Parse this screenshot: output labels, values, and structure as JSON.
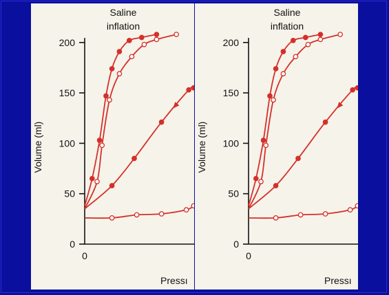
{
  "panels": [
    {
      "title_line1": "Saline",
      "title_line2": "inflation",
      "ylabel": "Volume (ml)",
      "xlabel_visible": "Pressı"
    },
    {
      "title_line1": "Saline",
      "title_line2": "inflation",
      "ylabel": "Volume (ml)",
      "xlabel_visible": "Pressı"
    }
  ],
  "chart_data": [
    {
      "type": "line",
      "title": "Saline inflation",
      "ylabel": "Volume (ml)",
      "xlabel": "Pressı",
      "ylim": [
        0,
        210
      ],
      "yticks": [
        0,
        50,
        100,
        150,
        200
      ],
      "xticks": [
        0
      ],
      "xlim": [
        0,
        22
      ],
      "colors": {
        "curve": "#d4302a",
        "axis": "#111111"
      },
      "series": [
        {
          "marker": "filled",
          "arrow": false,
          "x": [
            0,
            1.5,
            3.0,
            4.3,
            5.5,
            7.0,
            9.0,
            11.5,
            14.5
          ],
          "y": [
            38,
            65,
            103,
            147,
            174,
            191,
            202,
            205,
            208
          ]
        },
        {
          "marker": "open",
          "arrow": false,
          "x": [
            0,
            2.5,
            3.5,
            5.0,
            7.0,
            9.5,
            12.0,
            14.5,
            18.5
          ],
          "y": [
            35,
            62,
            98,
            143,
            169,
            186,
            198,
            203,
            208
          ]
        },
        {
          "marker": "filled",
          "arrow": true,
          "x": [
            0,
            5.5,
            10.0,
            15.5,
            21.0,
            22.0
          ],
          "y": [
            35,
            58,
            85,
            121,
            153,
            155
          ]
        },
        {
          "marker": "open",
          "arrow": false,
          "x": [
            0,
            5.5,
            10.5,
            15.5,
            20.5,
            22.0
          ],
          "y": [
            26,
            26,
            29,
            30,
            34,
            38
          ]
        }
      ]
    }
  ]
}
